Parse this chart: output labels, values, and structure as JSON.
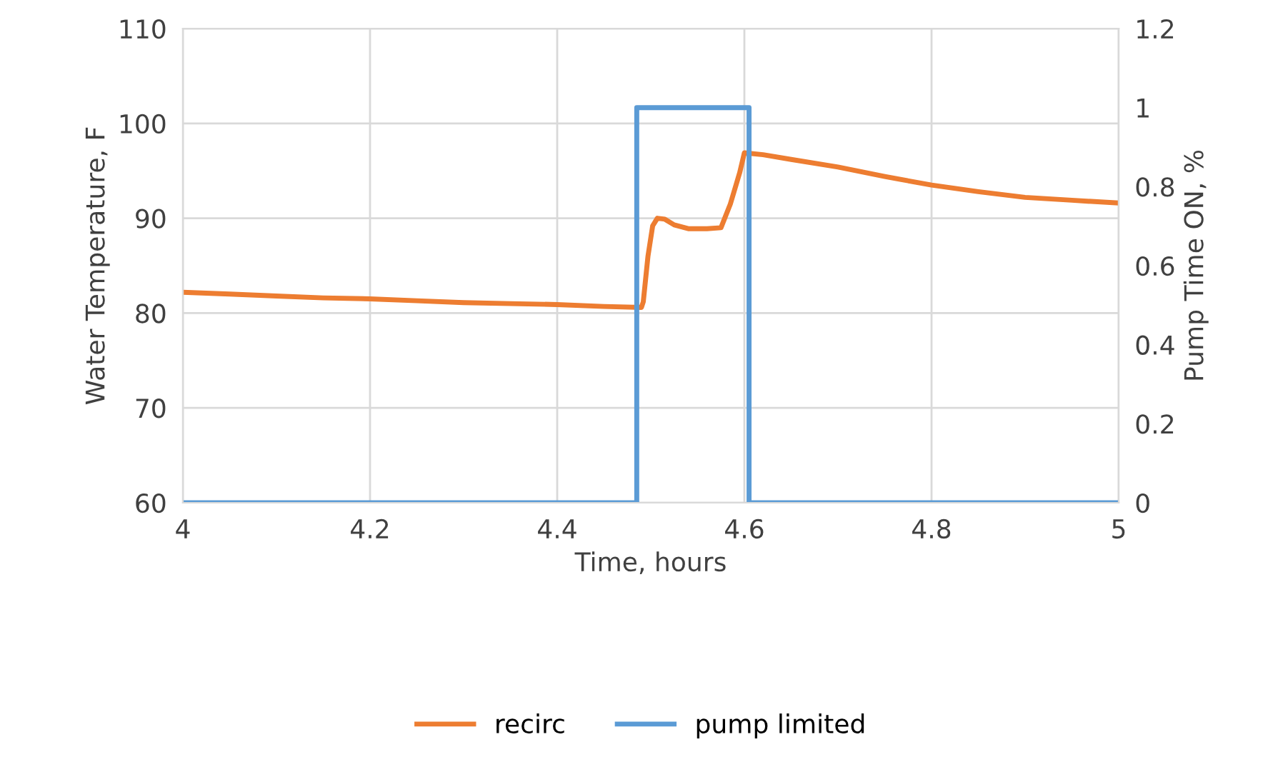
{
  "chart_data": {
    "type": "line",
    "xlabel": "Time, hours",
    "ylabel": "Water Temperature, F",
    "y2label": "Pump Time ON, %",
    "xlim": [
      4,
      5
    ],
    "xticks": [
      4,
      4.2,
      4.4,
      4.6,
      4.8,
      5
    ],
    "ylim": [
      60,
      110
    ],
    "yticks": [
      60,
      70,
      80,
      90,
      100,
      110
    ],
    "y2lim": [
      0,
      1.2
    ],
    "y2ticks": [
      0,
      0.2,
      0.4,
      0.6,
      0.8,
      1,
      1.2
    ],
    "grid": true,
    "legend": "bottom",
    "series": [
      {
        "name": "recirc",
        "color": "#ed7d31",
        "x": [
          4,
          4.05,
          4.1,
          4.15,
          4.2,
          4.25,
          4.3,
          4.35,
          4.4,
          4.45,
          4.49,
          4.492,
          4.497,
          4.502,
          4.507,
          4.515,
          4.525,
          4.54,
          4.56,
          4.575,
          4.585,
          4.595,
          4.6,
          4.62,
          4.65,
          4.7,
          4.75,
          4.8,
          4.85,
          4.9,
          4.95,
          5
        ],
        "values": [
          82.2,
          82.0,
          81.8,
          81.6,
          81.5,
          81.3,
          81.1,
          81.0,
          80.9,
          80.7,
          80.6,
          81.2,
          86.0,
          89.2,
          90.0,
          89.9,
          89.3,
          88.9,
          88.9,
          89.0,
          91.5,
          94.8,
          96.9,
          96.7,
          96.2,
          95.4,
          94.4,
          93.5,
          92.8,
          92.2,
          91.9,
          91.6
        ]
      },
      {
        "name": "pump limited",
        "color": "#5b9bd5",
        "type": "step",
        "axis": "y2",
        "x": [
          4,
          4.485,
          4.485,
          4.605,
          4.605,
          5
        ],
        "values": [
          0,
          0,
          1,
          1,
          0,
          0
        ]
      }
    ]
  }
}
